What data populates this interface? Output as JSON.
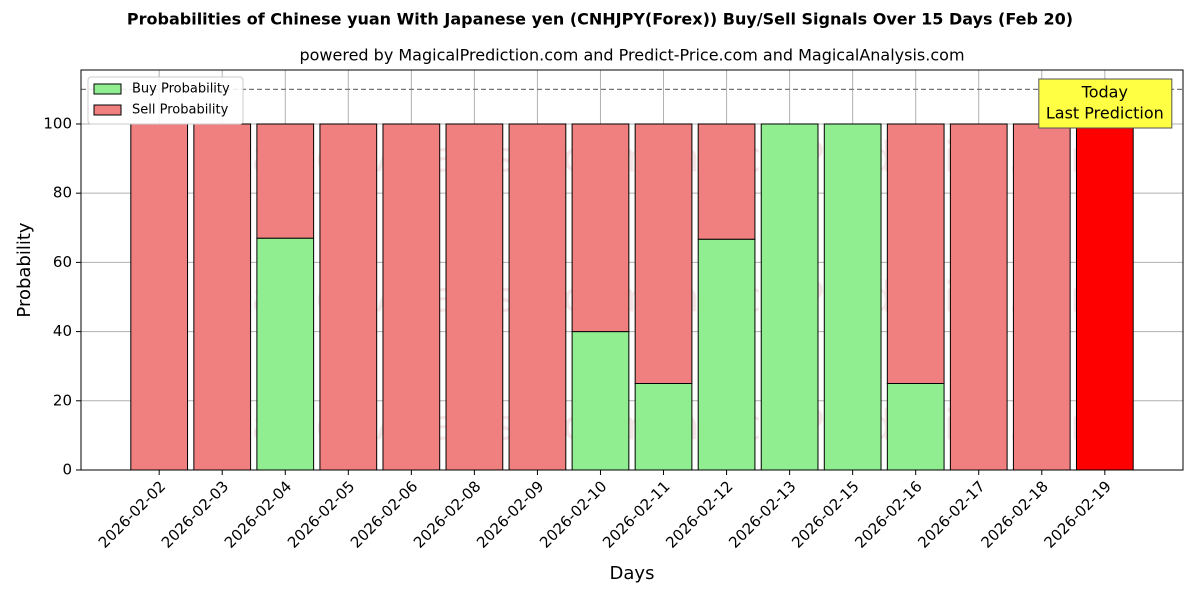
{
  "chart_data": {
    "type": "stacked-bar",
    "title": "Probabilities of Chinese yuan With Japanese yen (CNHJPY(Forex)) Buy/Sell Signals Over 15 Days (Feb 20)",
    "subtitle": "powered by MagicalPrediction.com and Predict-Price.com and MagicalAnalysis.com",
    "x_label": "Days",
    "y_label": "Probability",
    "categories": [
      "2026-02-02",
      "2026-02-03",
      "2026-02-04",
      "2026-02-05",
      "2026-02-06",
      "2026-02-08",
      "2026-02-09",
      "2026-02-10",
      "2026-02-11",
      "2026-02-12",
      "2026-02-13",
      "2026-02-15",
      "2026-02-16",
      "2026-02-17",
      "2026-02-18",
      "2026-02-19"
    ],
    "series": [
      {
        "name": "Buy Probability",
        "color": "#90ee90",
        "values": [
          0,
          0,
          67,
          0,
          0,
          0,
          0,
          40,
          25,
          66.7,
          100,
          100,
          25,
          0,
          0,
          0
        ]
      },
      {
        "name": "Sell Probability",
        "color": "#f08080",
        "values": [
          100,
          100,
          33,
          100,
          100,
          100,
          100,
          60,
          75,
          33.3,
          0,
          0,
          75,
          100,
          100,
          100
        ]
      }
    ],
    "highlight_color": "#ff0000",
    "annotation_lines": [
      "Today",
      "Last Prediction"
    ],
    "reference_line": 110,
    "watermarks": [
      "MagicalAnalysis.com",
      "MagicalPrediction.com"
    ],
    "ylim": [
      0,
      115.6
    ],
    "yticks": [
      0,
      20,
      40,
      60,
      80,
      100
    ],
    "grid": true,
    "legend": "upper-left"
  }
}
